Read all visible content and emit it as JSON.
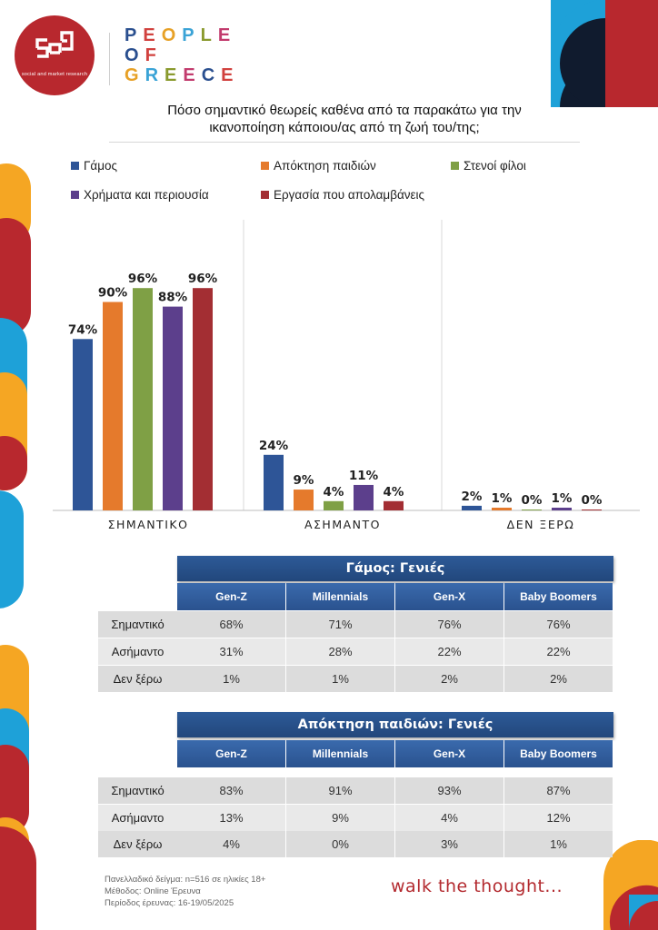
{
  "logo": {
    "subtitle": "social and market research"
  },
  "brand": {
    "lines": [
      "PEOPLE",
      "OF",
      "GREECE"
    ],
    "letter_colors": [
      "#2a4f8f",
      "#d1413e",
      "#e7a127",
      "#3aa3d6",
      "#8a9a2e",
      "#c23b6d"
    ]
  },
  "title": {
    "line1": "Πόσο σημαντικό θεωρείς καθένα από τα παρακάτω για την",
    "line2": "ικανοποίηση κάποιου/ας από τη ζωή του/της;"
  },
  "colors": {
    "red": "#b8282e",
    "orange": "#f5a623",
    "blue": "#1ea1d8",
    "navy": "#101b2e",
    "table_header": "#2a528f"
  },
  "chart_data": {
    "type": "bar",
    "categories": [
      "ΣΗΜΑΝΤΙΚΟ",
      "ΑΣΗΜΑΝΤΟ",
      "ΔΕΝ ΞΕΡΩ"
    ],
    "series": [
      {
        "name": "Γάμος",
        "color": "#2e5597",
        "values": [
          74,
          24,
          2
        ],
        "labels": [
          "74%",
          "24%",
          "2%"
        ]
      },
      {
        "name": "Απόκτηση παιδιών",
        "color": "#e57a2c",
        "values": [
          90,
          9,
          1
        ],
        "labels": [
          "90%",
          "9%",
          "1%"
        ]
      },
      {
        "name": "Στενοί φίλοι",
        "color": "#7fa045",
        "values": [
          96,
          4,
          0
        ],
        "labels": [
          "96%",
          "4%",
          "0%"
        ]
      },
      {
        "name": "Χρήματα και περιουσία",
        "color": "#5c3f8c",
        "values": [
          88,
          11,
          1
        ],
        "labels": [
          "88%",
          "11%",
          "1%"
        ]
      },
      {
        "name": "Εργασία που απολαμβάνεις",
        "color": "#a32e33",
        "values": [
          96,
          4,
          0
        ],
        "labels": [
          "96%",
          "4%",
          "0%"
        ]
      }
    ],
    "ylim": [
      0,
      100
    ],
    "legend_position": "top",
    "grid": false
  },
  "tables": [
    {
      "title": "Γάμος: Γενιές",
      "columns": [
        "Gen-Z",
        "Millennials",
        "Gen-X",
        "Baby Boomers"
      ],
      "rows": [
        {
          "label": "Σημαντικό",
          "values": [
            "68%",
            "71%",
            "76%",
            "76%"
          ]
        },
        {
          "label": "Ασήμαντο",
          "values": [
            "31%",
            "28%",
            "22%",
            "22%"
          ]
        },
        {
          "label": "Δεν ξέρω",
          "values": [
            "1%",
            "1%",
            "2%",
            "2%"
          ]
        }
      ]
    },
    {
      "title": "Απόκτηση παιδιών: Γενιές",
      "columns": [
        "Gen-Z",
        "Millennials",
        "Gen-X",
        "Baby Boomers"
      ],
      "rows": [
        {
          "label": "Σημαντικό",
          "values": [
            "83%",
            "91%",
            "93%",
            "87%"
          ]
        },
        {
          "label": "Ασήμαντο",
          "values": [
            "13%",
            "9%",
            "4%",
            "12%"
          ]
        },
        {
          "label": "Δεν ξέρω",
          "values": [
            "4%",
            "0%",
            "3%",
            "1%"
          ]
        }
      ]
    }
  ],
  "footnote": {
    "sample": "Πανελλαδικό δείγμα: n=516 σε ηλικίες 18+",
    "method": "Μέθοδος: Online Έρευνα",
    "period": "Περίοδος έρευνας: 16-19/05/2025"
  },
  "tagline": "walk the thought..."
}
